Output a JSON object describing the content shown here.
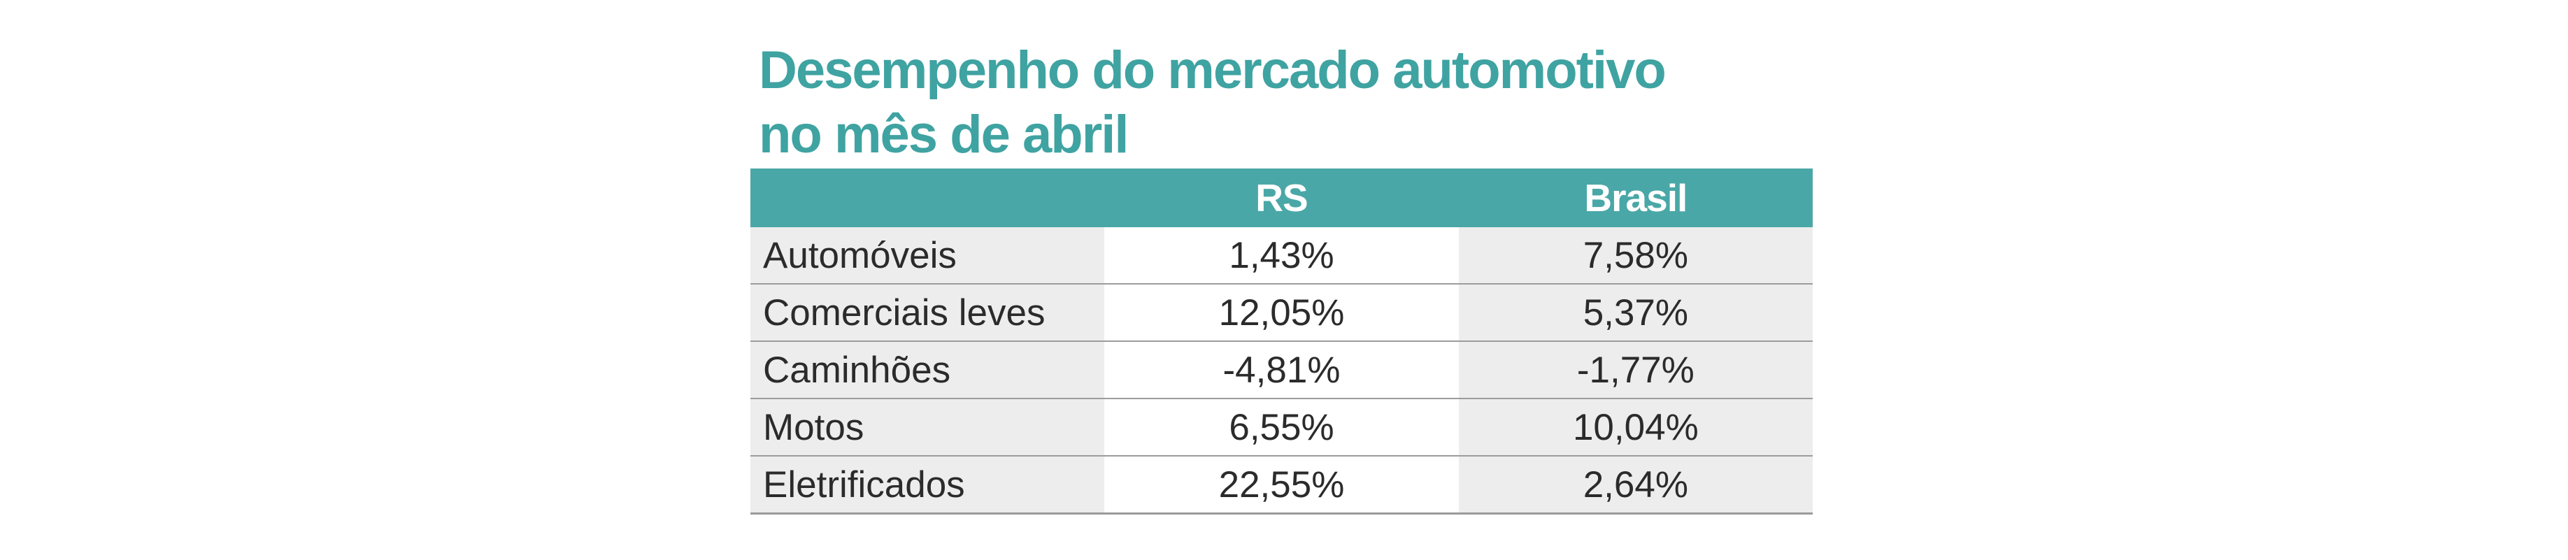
{
  "infographic": {
    "title_line1": "Desempenho do mercado automotivo",
    "title_line2": "no mês de abril",
    "accent_color": "#3fa3a2",
    "header_bg_color": "#4aa7a7",
    "alt_cell_bg_color": "#ededed",
    "table": {
      "headers": {
        "label": "",
        "region": "RS",
        "country": "Brasil"
      },
      "rows": [
        {
          "label": "Automóveis",
          "rs": "1,43%",
          "brasil": "7,58%"
        },
        {
          "label": "Comerciais leves",
          "rs": "12,05%",
          "brasil": "5,37%"
        },
        {
          "label": "Caminhões",
          "rs": "-4,81%",
          "brasil": "-1,77%"
        },
        {
          "label": "Motos",
          "rs": "6,55%",
          "brasil": "10,04%"
        },
        {
          "label": "Eletrificados",
          "rs": "22,55%",
          "brasil": "2,64%"
        }
      ]
    }
  },
  "chart_data": {
    "type": "table",
    "title": "Desempenho do mercado automotivo no mês de abril",
    "columns": [
      "",
      "RS",
      "Brasil"
    ],
    "categories": [
      "Automóveis",
      "Comerciais leves",
      "Caminhões",
      "Motos",
      "Eletrificados"
    ],
    "series": [
      {
        "name": "RS",
        "values": [
          1.43,
          12.05,
          -4.81,
          6.55,
          22.55
        ]
      },
      {
        "name": "Brasil",
        "values": [
          7.58,
          5.37,
          -1.77,
          10.04,
          2.64
        ]
      }
    ],
    "unit": "%"
  }
}
